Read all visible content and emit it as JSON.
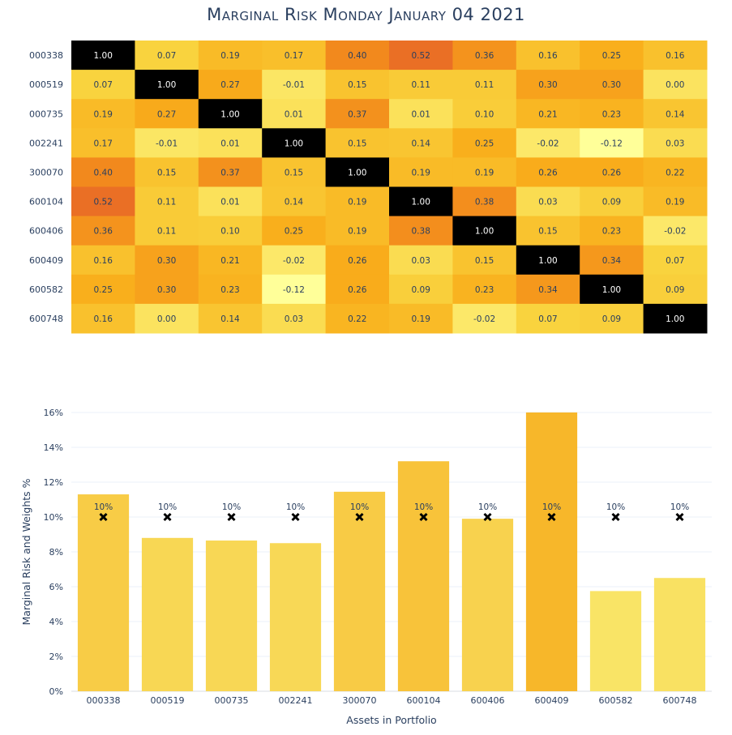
{
  "title": "Marginal Risk Monday January 04 2021",
  "chart_data": [
    {
      "type": "heatmap",
      "rows": [
        "000338",
        "000519",
        "000735",
        "002241",
        "300070",
        "600104",
        "600406",
        "600409",
        "600582",
        "600748"
      ],
      "columns": [
        "000338",
        "000519",
        "000735",
        "002241",
        "300070",
        "600104",
        "600406",
        "600409",
        "600582",
        "600748"
      ],
      "values": [
        [
          1.0,
          0.07,
          0.19,
          0.17,
          0.4,
          0.52,
          0.36,
          0.16,
          0.25,
          0.16
        ],
        [
          0.07,
          1.0,
          0.27,
          -0.01,
          0.15,
          0.11,
          0.11,
          0.3,
          0.3,
          0.0
        ],
        [
          0.19,
          0.27,
          1.0,
          0.01,
          0.37,
          0.01,
          0.1,
          0.21,
          0.23,
          0.14
        ],
        [
          0.17,
          -0.01,
          0.01,
          1.0,
          0.15,
          0.14,
          0.25,
          -0.02,
          -0.12,
          0.03
        ],
        [
          0.4,
          0.15,
          0.37,
          0.15,
          1.0,
          0.19,
          0.19,
          0.26,
          0.26,
          0.22
        ],
        [
          0.52,
          0.11,
          0.01,
          0.14,
          0.19,
          1.0,
          0.38,
          0.03,
          0.09,
          0.19
        ],
        [
          0.36,
          0.11,
          0.1,
          0.25,
          0.19,
          0.38,
          1.0,
          0.15,
          0.23,
          -0.02
        ],
        [
          0.16,
          0.3,
          0.21,
          -0.02,
          0.26,
          0.03,
          0.15,
          1.0,
          0.34,
          0.07
        ],
        [
          0.25,
          0.3,
          0.23,
          -0.12,
          0.26,
          0.09,
          0.23,
          0.34,
          1.0,
          0.09
        ],
        [
          0.16,
          0.0,
          0.14,
          0.03,
          0.22,
          0.19,
          -0.02,
          0.07,
          0.09,
          1.0
        ]
      ],
      "colorscale": [
        "#ffff99",
        "#f9d43f",
        "#f9ae1b",
        "#f07f1e",
        "#e35a2f",
        "#b8354d",
        "#000000"
      ],
      "zlim": [
        -0.12,
        1.0
      ]
    },
    {
      "type": "bar",
      "categories": [
        "000338",
        "000519",
        "000735",
        "002241",
        "300070",
        "600104",
        "600406",
        "600409",
        "600582",
        "600748"
      ],
      "series": [
        {
          "values": [
            11.3,
            8.8,
            8.65,
            8.5,
            11.45,
            13.2,
            9.9,
            16.0,
            5.75,
            6.5
          ]
        },
        {
          "values": [
            10,
            10,
            10,
            10,
            10,
            10,
            10,
            10,
            10,
            10
          ],
          "labels": [
            "10%",
            "10%",
            "10%",
            "10%",
            "10%",
            "10%",
            "10%",
            "10%",
            "10%",
            "10%"
          ]
        }
      ],
      "bar_colorscale": [
        "#f9e466",
        "#f7b72a"
      ],
      "xlabel": "Assets in Portfolio",
      "ylabel": "Marginal Risk and Weights %",
      "ylim": [
        0,
        16
      ],
      "yticks": [
        0,
        2,
        4,
        6,
        8,
        10,
        12,
        14,
        16
      ],
      "ytick_labels": [
        "0%",
        "2%",
        "4%",
        "6%",
        "8%",
        "10%",
        "12%",
        "14%",
        "16%"
      ],
      "grid": true
    }
  ]
}
